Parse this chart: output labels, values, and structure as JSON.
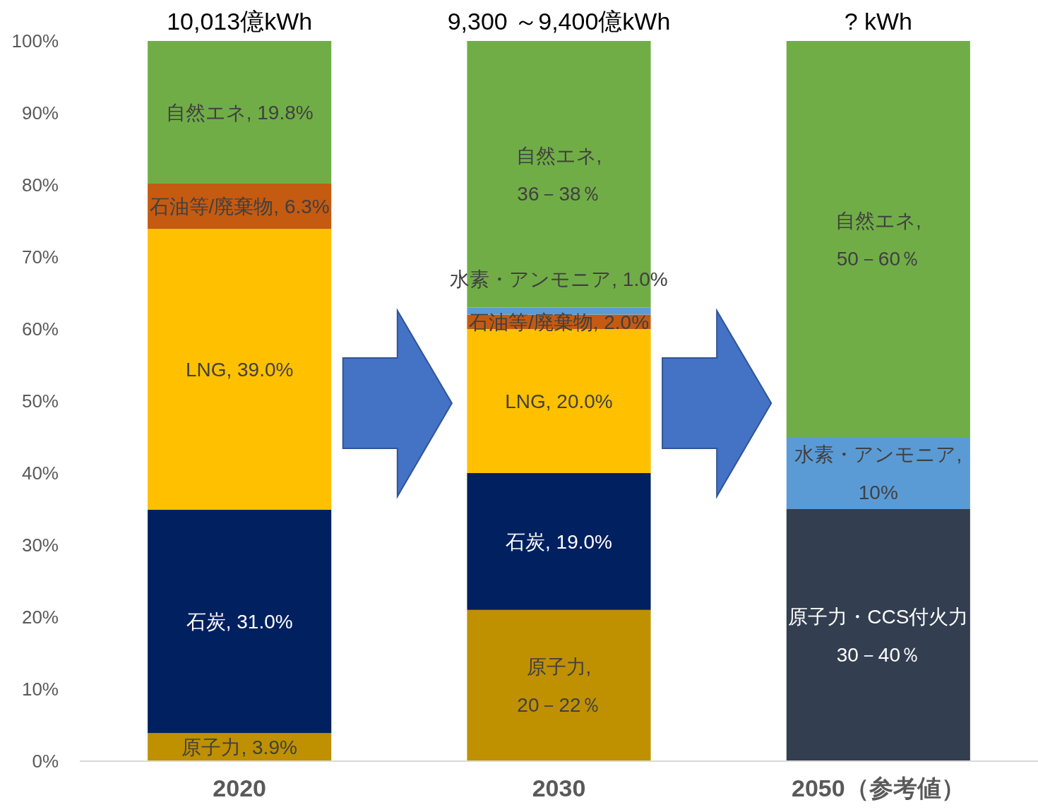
{
  "chart_data": {
    "type": "bar",
    "stacked": true,
    "categories": [
      "2020",
      "2030",
      "2050（参考値）"
    ],
    "ylim": [
      0,
      100
    ],
    "yticks": [
      {
        "value": 0,
        "label": "0%"
      },
      {
        "value": 10,
        "label": "10%"
      },
      {
        "value": 20,
        "label": "20%"
      },
      {
        "value": 30,
        "label": "30%"
      },
      {
        "value": 40,
        "label": "40%"
      },
      {
        "value": 50,
        "label": "50%"
      },
      {
        "value": 60,
        "label": "60%"
      },
      {
        "value": 70,
        "label": "70%"
      },
      {
        "value": 80,
        "label": "80%"
      },
      {
        "value": 90,
        "label": "90%"
      },
      {
        "value": 100,
        "label": "100%"
      }
    ],
    "series": [
      {
        "color": "#bf9000",
        "values": [
          3.9,
          21,
          null
        ],
        "value_labels": [
          "原子力, 3.9%",
          "原子力,\n20－22％",
          null
        ]
      },
      {
        "color": "#333f50",
        "values": [
          null,
          null,
          35
        ],
        "value_labels": [
          null,
          null,
          "原子力・CCS付火力\n30－40％"
        ]
      },
      {
        "color": "#002060",
        "values": [
          31.0,
          19.0,
          null
        ],
        "value_labels": [
          "石炭, 31.0%",
          "石炭, 19.0%",
          null
        ]
      },
      {
        "color": "#ffc000",
        "values": [
          39.0,
          20.0,
          null
        ],
        "value_labels": [
          "LNG, 39.0%",
          "LNG, 20.0%",
          null
        ]
      },
      {
        "color": "#c55a11",
        "values": [
          6.3,
          2.0,
          null
        ],
        "value_labels": [
          "石油等/廃棄物, 6.3%",
          "石油等/廃棄物, 2.0%",
          null
        ]
      },
      {
        "color": "#5b9bd5",
        "values": [
          null,
          1.0,
          10
        ],
        "value_labels": [
          null,
          "水素・アンモニア, 1.0%",
          "水素・アンモニア,\n10%"
        ]
      },
      {
        "color": "#70ad47",
        "values": [
          19.8,
          37,
          55
        ],
        "value_labels": [
          "自然エネ, 19.8%",
          "自然エネ,\n36－38％",
          "自然エネ,\n50－60％"
        ]
      }
    ],
    "annotations": [
      {
        "text": "10,013億kWh",
        "x": "2020",
        "y": 100
      },
      {
        "text": "9,300 ～9,400億kWh",
        "x": "2030",
        "y": 100
      },
      {
        "text": "? kWh",
        "x": "2050（参考値）",
        "y": 100
      }
    ]
  }
}
